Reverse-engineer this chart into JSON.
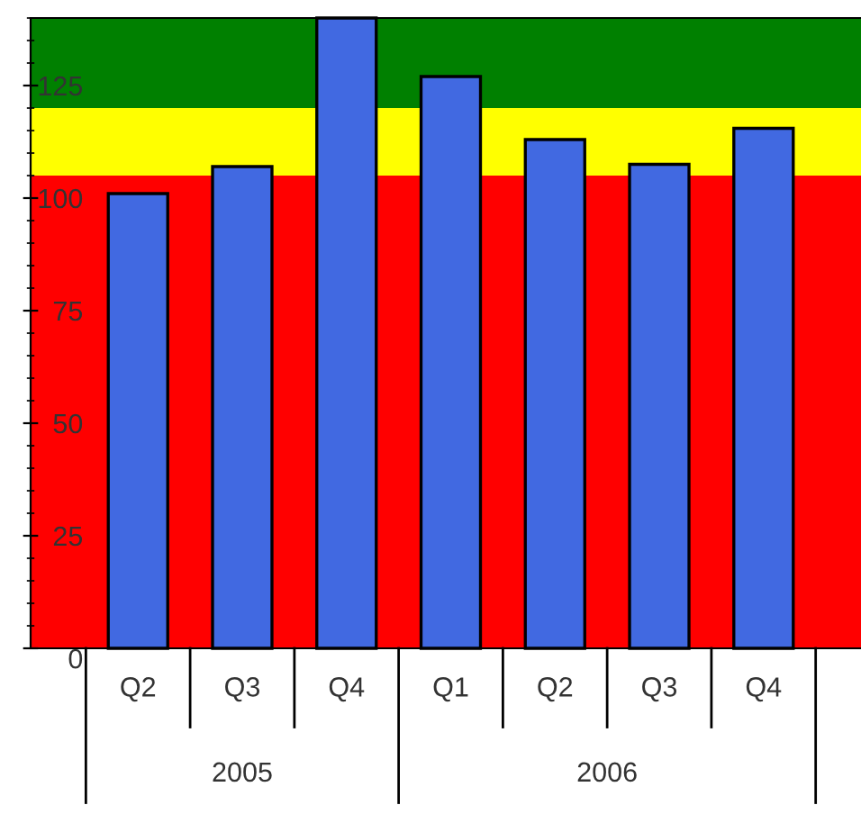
{
  "chart_data": {
    "type": "bar",
    "categories": [
      "Q2",
      "Q3",
      "Q4",
      "Q1",
      "Q2",
      "Q3",
      "Q4"
    ],
    "values": [
      101,
      107,
      140,
      127,
      113,
      107.5,
      115.5
    ],
    "color": "#4169e1",
    "ylim": [
      0,
      140
    ],
    "yticks": [
      0,
      25,
      50,
      75,
      100,
      125
    ],
    "bands": [
      {
        "axis": "y",
        "from": 0,
        "to": 105,
        "color": "#ff0000"
      },
      {
        "axis": "y",
        "from": 105,
        "to": 120,
        "color": "#ffff00"
      },
      {
        "axis": "y",
        "from": 120,
        "to": 140,
        "color": "#008000"
      }
    ],
    "annotations": [
      "2005",
      "2006"
    ],
    "grid": false,
    "legend": false
  }
}
